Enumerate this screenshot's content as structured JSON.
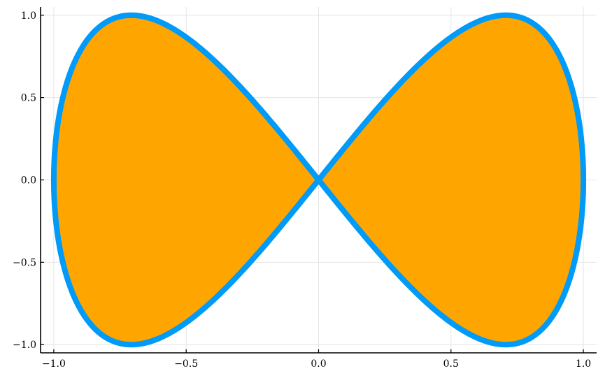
{
  "chart_data": {
    "type": "line",
    "title": "",
    "xlabel": "",
    "ylabel": "",
    "xlim": [
      -1.05,
      1.05
    ],
    "ylim": [
      -1.05,
      1.05
    ],
    "grid": true,
    "legend": "none",
    "x_ticks": [
      {
        "value": -1.0,
        "label": "−1.0"
      },
      {
        "value": -0.5,
        "label": "−0.5"
      },
      {
        "value": 0.0,
        "label": "0.0"
      },
      {
        "value": 0.5,
        "label": "0.5"
      },
      {
        "value": 1.0,
        "label": "1.0"
      }
    ],
    "y_ticks": [
      {
        "value": -1.0,
        "label": "−1.0"
      },
      {
        "value": -0.5,
        "label": "−0.5"
      },
      {
        "value": 0.0,
        "label": "0.0"
      },
      {
        "value": 0.5,
        "label": "0.5"
      },
      {
        "value": 1.0,
        "label": "1.0"
      }
    ],
    "series": [
      {
        "curve": "x = cos(t), y = sin(2t), t in [0, 2π]",
        "line_color": "#009af9",
        "fill_color": "#ffa500",
        "points": [
          [
            1.0,
            0.0
          ],
          [
            0.981,
            0.383
          ],
          [
            0.924,
            0.707
          ],
          [
            0.831,
            0.924
          ],
          [
            0.707,
            1.0
          ],
          [
            0.556,
            0.924
          ],
          [
            0.383,
            0.707
          ],
          [
            0.195,
            0.383
          ],
          [
            0.0,
            0.0
          ],
          [
            -0.195,
            -0.383
          ],
          [
            -0.383,
            -0.707
          ],
          [
            -0.556,
            -0.924
          ],
          [
            -0.707,
            -1.0
          ],
          [
            -0.831,
            -0.924
          ],
          [
            -0.924,
            -0.707
          ],
          [
            -0.981,
            -0.383
          ],
          [
            -1.0,
            0.0
          ],
          [
            -0.981,
            0.383
          ],
          [
            -0.924,
            0.707
          ],
          [
            -0.831,
            0.924
          ],
          [
            -0.707,
            1.0
          ],
          [
            -0.556,
            0.924
          ],
          [
            -0.383,
            0.707
          ],
          [
            -0.195,
            0.383
          ],
          [
            0.0,
            0.0
          ],
          [
            0.195,
            -0.383
          ],
          [
            0.383,
            -0.707
          ],
          [
            0.556,
            -0.924
          ],
          [
            0.707,
            -1.0
          ],
          [
            0.831,
            -0.924
          ],
          [
            0.924,
            -0.707
          ],
          [
            0.981,
            -0.383
          ],
          [
            1.0,
            0.0
          ]
        ]
      }
    ]
  }
}
